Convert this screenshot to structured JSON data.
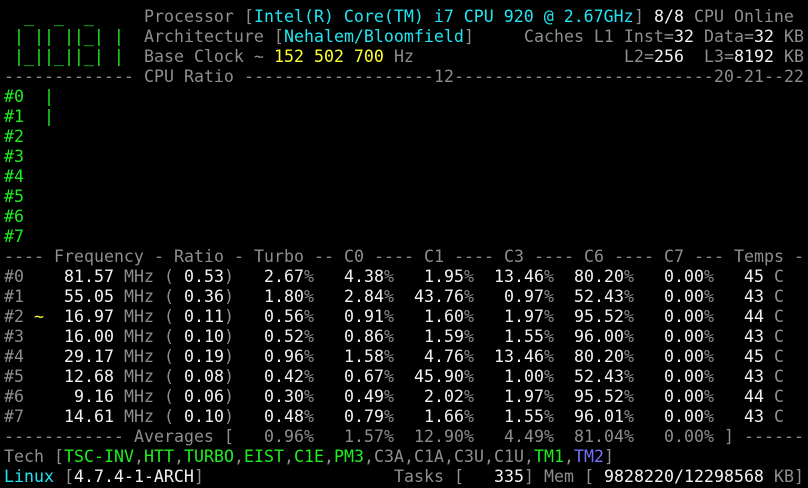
{
  "logo": {
    "lines": [
      "  _  _  _",
      " | || ||_| |",
      " |_||_||_| |"
    ]
  },
  "processor": {
    "label": "Processor [",
    "brand": "Intel(R) Core(TM) i7 CPU 920 @ 2.67GHz",
    "close": "]",
    "online": "8/8",
    "online_label": "CPU Online"
  },
  "architecture": {
    "label": "Architecture [",
    "value": "Nehalem/Bloomfield",
    "close": "]"
  },
  "caches": {
    "label": "Caches L1 Inst=",
    "inst": "32",
    "data_label": "Data=",
    "data": "32",
    "unit": "KB",
    "l2_label": "L2=",
    "l2": "256",
    "l3_label": "L3=",
    "l3": "8192"
  },
  "base_clock": {
    "label": "Base Clock ~",
    "value": "152 502 700",
    "unit": "Hz"
  },
  "ratio": {
    "title": "CPU Ratio",
    "marks": [
      "12",
      "20",
      "21",
      "22"
    ],
    "bar_glyph": "|"
  },
  "headers": [
    "Frequency",
    "Ratio",
    "Turbo",
    "C0",
    "C1",
    "C3",
    "C6",
    "C7",
    "Temps"
  ],
  "units": {
    "mhz": "MHz",
    "open": "(",
    "close": ")",
    "pct": "%",
    "temp": "C"
  },
  "cores": [
    {
      "id": "#0",
      "ratio_bar": 1,
      "marker": "",
      "freq": "81.57",
      "ratio": "0.53",
      "turbo": "2.67",
      "c0": "4.38",
      "c1": "1.95",
      "c3": "13.46",
      "c6": "80.20",
      "c7": "0.00",
      "temp": "45"
    },
    {
      "id": "#1",
      "ratio_bar": 1,
      "marker": "",
      "freq": "55.05",
      "ratio": "0.36",
      "turbo": "1.80",
      "c0": "2.84",
      "c1": "43.76",
      "c3": "0.97",
      "c6": "52.43",
      "c7": "0.00",
      "temp": "43"
    },
    {
      "id": "#2",
      "ratio_bar": 0,
      "marker": "~",
      "freq": "16.97",
      "ratio": "0.11",
      "turbo": "0.56",
      "c0": "0.91",
      "c1": "1.60",
      "c3": "1.97",
      "c6": "95.52",
      "c7": "0.00",
      "temp": "44"
    },
    {
      "id": "#3",
      "ratio_bar": 0,
      "marker": "",
      "freq": "16.00",
      "ratio": "0.10",
      "turbo": "0.52",
      "c0": "0.86",
      "c1": "1.59",
      "c3": "1.55",
      "c6": "96.00",
      "c7": "0.00",
      "temp": "43"
    },
    {
      "id": "#4",
      "ratio_bar": 0,
      "marker": "",
      "freq": "29.17",
      "ratio": "0.19",
      "turbo": "0.96",
      "c0": "1.58",
      "c1": "4.76",
      "c3": "13.46",
      "c6": "80.20",
      "c7": "0.00",
      "temp": "45"
    },
    {
      "id": "#5",
      "ratio_bar": 0,
      "marker": "",
      "freq": "12.68",
      "ratio": "0.08",
      "turbo": "0.42",
      "c0": "0.67",
      "c1": "45.90",
      "c3": "1.00",
      "c6": "52.43",
      "c7": "0.00",
      "temp": "43"
    },
    {
      "id": "#6",
      "ratio_bar": 0,
      "marker": "",
      "freq": "9.16",
      "ratio": "0.06",
      "turbo": "0.30",
      "c0": "0.49",
      "c1": "2.02",
      "c3": "1.97",
      "c6": "95.52",
      "c7": "0.00",
      "temp": "44"
    },
    {
      "id": "#7",
      "ratio_bar": 0,
      "marker": "",
      "freq": "14.61",
      "ratio": "0.10",
      "turbo": "0.48",
      "c0": "0.79",
      "c1": "1.66",
      "c3": "1.55",
      "c6": "96.01",
      "c7": "0.00",
      "temp": "43"
    }
  ],
  "averages": {
    "label": "Averages [",
    "close": "]",
    "turbo": "0.96",
    "c0": "1.57",
    "c1": "12.90",
    "c3": "4.49",
    "c6": "81.04",
    "c7": "0.00"
  },
  "tech": {
    "label": "Tech [",
    "close": "]",
    "items": [
      {
        "name": "TSC-INV",
        "state": "on"
      },
      {
        "name": "HTT",
        "state": "on"
      },
      {
        "name": "TURBO",
        "state": "on"
      },
      {
        "name": "EIST",
        "state": "on"
      },
      {
        "name": "C1E",
        "state": "on"
      },
      {
        "name": "PM3",
        "state": "on"
      },
      {
        "name": "C3A",
        "state": "off"
      },
      {
        "name": "C1A",
        "state": "off"
      },
      {
        "name": "C3U",
        "state": "off"
      },
      {
        "name": "C1U",
        "state": "off"
      },
      {
        "name": "TM1",
        "state": "on"
      },
      {
        "name": "TM2",
        "state": "partial"
      }
    ],
    "separator": ","
  },
  "footer": {
    "os": "Linux",
    "kernel": "4.7.4-1-ARCH",
    "tasks_label": "Tasks [",
    "tasks": "335",
    "mem_label": "Mem [",
    "mem_used": "9828220",
    "mem_sep": "/",
    "mem_total": "12298568",
    "mem_unit": "KB]",
    "open": "[",
    "close": "]"
  },
  "colors": {
    "background": "#000000",
    "label": "#8e8e8e",
    "value": "#f2f2f2",
    "brand": "#1fe6f2",
    "clock": "#ffff2e",
    "enabled": "#1fee1f",
    "partial": "#7272ff"
  }
}
